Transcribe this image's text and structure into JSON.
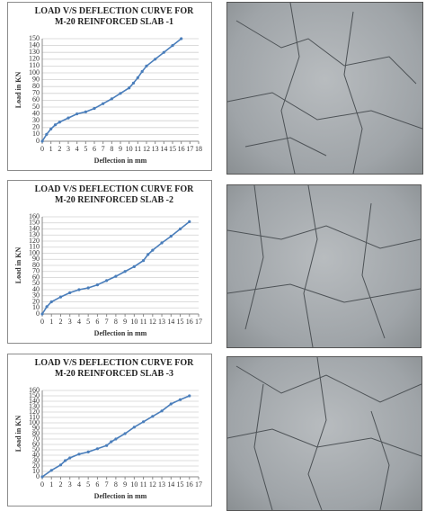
{
  "chart_data": [
    {
      "type": "line",
      "title": "LOAD V/S DEFLECTION CURVE FOR M-20 REINFORCED SLAB -1",
      "x_label": "Deflection in mm",
      "y_label": "Load in KN",
      "x": [
        0,
        0.5,
        1,
        1.5,
        2,
        3,
        4,
        5,
        6,
        7,
        8,
        9,
        10,
        10.5,
        11,
        11.5,
        12,
        13,
        14,
        15,
        16
      ],
      "series": [
        {
          "name": "Slab 1",
          "color": "#4a7ebb",
          "values": [
            0,
            10,
            18,
            24,
            28,
            34,
            40,
            43,
            48,
            55,
            62,
            70,
            78,
            85,
            93,
            102,
            110,
            120,
            130,
            140,
            150
          ]
        }
      ],
      "xlim": [
        0,
        18
      ],
      "xticks": [
        0,
        1,
        2,
        3,
        4,
        5,
        6,
        7,
        8,
        9,
        10,
        11,
        12,
        13,
        14,
        15,
        16,
        17,
        18
      ],
      "ylim": [
        0,
        150
      ],
      "yticks": [
        0,
        10,
        20,
        30,
        40,
        50,
        60,
        70,
        80,
        90,
        100,
        110,
        120,
        130,
        140,
        150
      ],
      "grid": true
    },
    {
      "type": "line",
      "title": "LOAD V/S DEFLECTION CURVE FOR M-20 REINFORCED SLAB -2",
      "x_label": "Deflection in mm",
      "y_label": "Load in KN",
      "x": [
        0,
        0.5,
        1,
        2,
        3,
        4,
        5,
        6,
        7,
        8,
        9,
        10,
        11,
        11.5,
        12,
        13,
        14,
        15,
        16
      ],
      "series": [
        {
          "name": "Slab 2",
          "color": "#4a7ebb",
          "values": [
            0,
            12,
            20,
            28,
            35,
            40,
            43,
            48,
            55,
            62,
            70,
            78,
            88,
            98,
            105,
            117,
            128,
            140,
            152
          ]
        }
      ],
      "xlim": [
        0,
        17
      ],
      "xticks": [
        0,
        1,
        2,
        3,
        4,
        5,
        6,
        7,
        8,
        9,
        10,
        11,
        12,
        13,
        14,
        15,
        16,
        17
      ],
      "ylim": [
        0,
        160
      ],
      "yticks": [
        0,
        10,
        20,
        30,
        40,
        50,
        60,
        70,
        80,
        90,
        100,
        110,
        120,
        130,
        140,
        150,
        160
      ],
      "grid": true
    },
    {
      "type": "line",
      "title": "LOAD V/S DEFLECTION CURVE FOR M-20 REINFORCED SLAB -3",
      "x_label": "Deflection in mm",
      "y_label": "Load in KN",
      "x": [
        0,
        1,
        2,
        2.5,
        3,
        4,
        5,
        6,
        7,
        7.5,
        8,
        9,
        10,
        11,
        12,
        13,
        14,
        15,
        16
      ],
      "series": [
        {
          "name": "Slab 3",
          "color": "#4a7ebb",
          "values": [
            0,
            12,
            22,
            30,
            35,
            42,
            46,
            52,
            58,
            65,
            70,
            80,
            92,
            102,
            112,
            122,
            135,
            143,
            150
          ]
        }
      ],
      "xlim": [
        0,
        17
      ],
      "xticks": [
        0,
        1,
        2,
        3,
        4,
        5,
        6,
        7,
        8,
        9,
        10,
        11,
        12,
        13,
        14,
        15,
        16,
        17
      ],
      "ylim": [
        0,
        160
      ],
      "yticks": [
        0,
        10,
        20,
        30,
        40,
        50,
        60,
        70,
        80,
        90,
        100,
        110,
        120,
        130,
        140,
        150,
        160
      ],
      "grid": true
    }
  ]
}
